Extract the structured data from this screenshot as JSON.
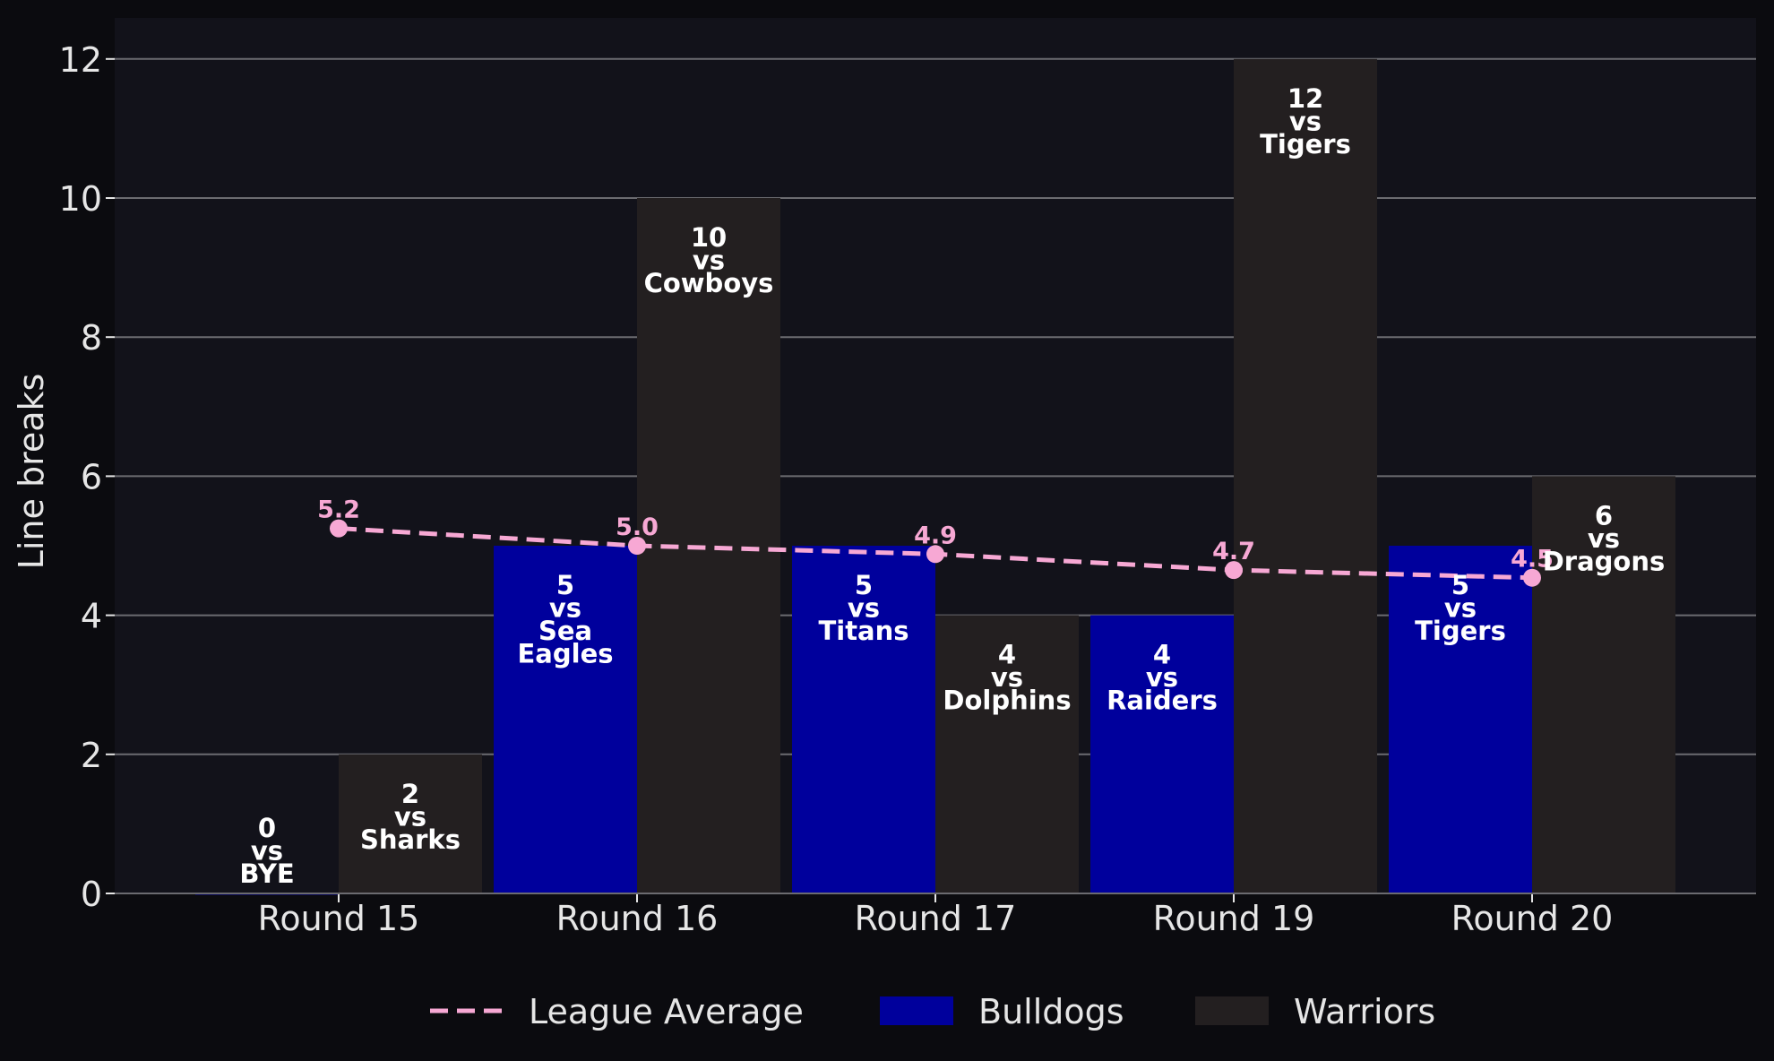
{
  "chart_data": {
    "type": "bar",
    "ylabel": "Line breaks",
    "ylim": [
      0,
      12.6
    ],
    "yticks": [
      0,
      2,
      4,
      6,
      8,
      10,
      12
    ],
    "grid": true,
    "legend_position": "bottom-center",
    "categories": [
      "Round 15",
      "Round 16",
      "Round 17",
      "Round 19",
      "Round 20"
    ],
    "series": [
      {
        "name": "Bulldogs",
        "type": "bar",
        "color": "#00009c",
        "values": [
          0,
          5,
          5,
          4,
          5
        ],
        "labels": [
          [
            "0",
            "vs",
            "BYE"
          ],
          [
            "5",
            "vs",
            "Sea",
            "Eagles"
          ],
          [
            "5",
            "vs",
            "Titans"
          ],
          [
            "4",
            "vs",
            "Raiders"
          ],
          [
            "5",
            "vs",
            "Tigers"
          ]
        ]
      },
      {
        "name": "Warriors",
        "type": "bar",
        "color": "#231f20",
        "values": [
          2,
          10,
          4,
          12,
          6
        ],
        "labels": [
          [
            "2",
            "vs",
            "Sharks"
          ],
          [
            "10",
            "vs",
            "Cowboys"
          ],
          [
            "4",
            "vs",
            "Dolphins"
          ],
          [
            "12",
            "vs",
            "Tigers"
          ],
          [
            "6",
            "vs",
            "Dragons"
          ]
        ]
      },
      {
        "name": "League Average",
        "type": "line",
        "style": "dashed",
        "color": "#f7a8d4",
        "values": [
          5.25,
          5.0,
          4.88,
          4.65,
          4.54
        ],
        "labels": [
          "5.2",
          "5.0",
          "4.9",
          "4.7",
          "4.5"
        ]
      }
    ],
    "colors": {
      "page_background": "#0b0b0f",
      "plot_background": "#12121a",
      "grid": "#6b6b70",
      "text": "#e6e6e6"
    }
  }
}
